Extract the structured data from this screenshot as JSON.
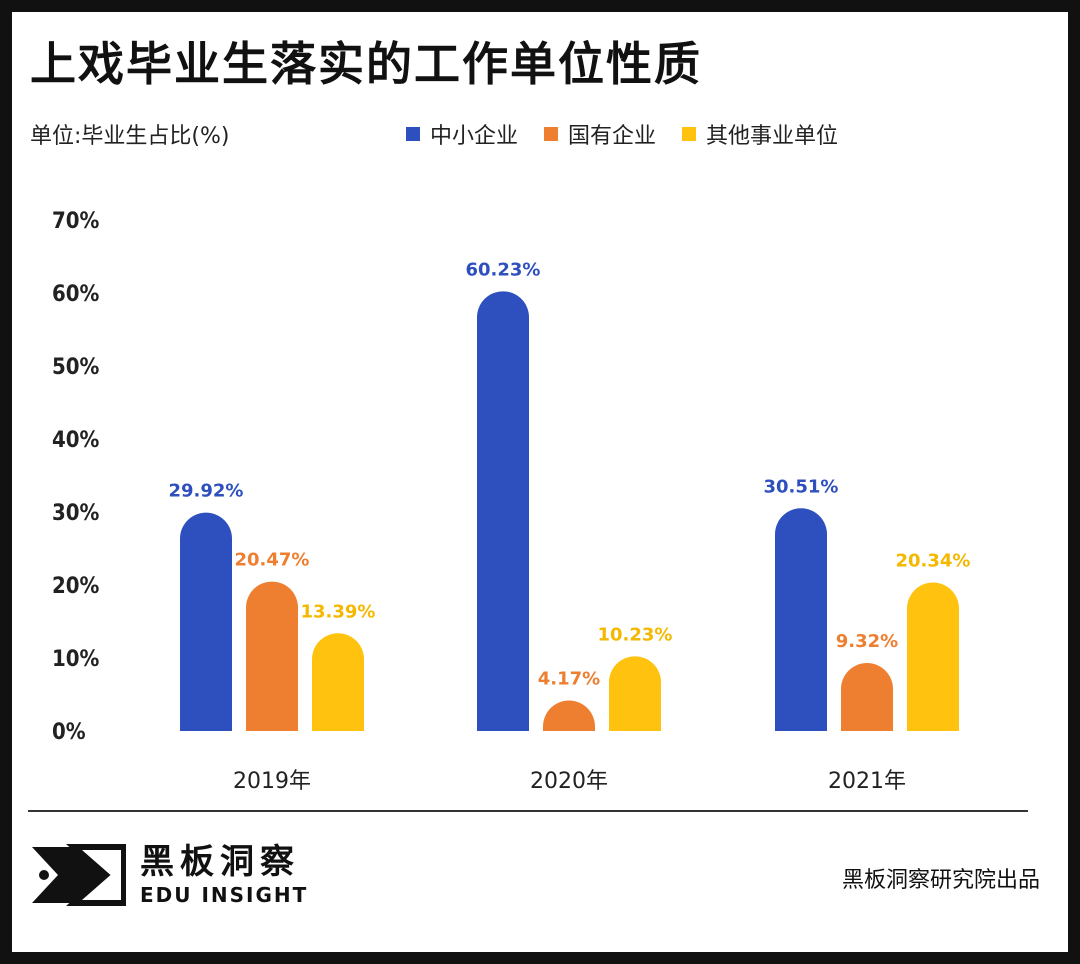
{
  "header": {
    "title": "上戏毕业生落实的工作单位性质",
    "unit": "单位:毕业生占比(%)"
  },
  "legend": [
    {
      "label": "中小企业",
      "color": "#2E4FBE"
    },
    {
      "label": "国有企业",
      "color": "#EE7F30"
    },
    {
      "label": "其他事业单位",
      "color": "#FFC20E"
    }
  ],
  "chart_data": {
    "type": "bar",
    "title": "上戏毕业生落实的工作单位性质",
    "ylabel": "单位:毕业生占比(%)",
    "xlabel": "",
    "ylim": [
      0,
      70
    ],
    "yticks": [
      "0%",
      "10%",
      "20%",
      "30%",
      "40%",
      "50%",
      "60%",
      "70%"
    ],
    "categories": [
      "2019年",
      "2020年",
      "2021年"
    ],
    "series": [
      {
        "name": "中小企业",
        "color": "#2E4FBE",
        "values": [
          29.92,
          60.23,
          30.51
        ],
        "labels": [
          "29.92%",
          "60.23%",
          "30.51%"
        ]
      },
      {
        "name": "国有企业",
        "color": "#EE7F30",
        "values": [
          20.47,
          4.17,
          9.32
        ],
        "labels": [
          "20.47%",
          "4.17%",
          "9.32%"
        ]
      },
      {
        "name": "其他事业单位",
        "color": "#FFC20E",
        "values": [
          13.39,
          10.23,
          20.34
        ],
        "labels": [
          "13.39%",
          "10.23%",
          "20.34%"
        ]
      }
    ],
    "grid": false,
    "legend_position": "top"
  },
  "footer": {
    "logo_cn": "黑板洞察",
    "logo_en": "EDU INSIGHT",
    "credit": "黑板洞察研究院出品"
  }
}
